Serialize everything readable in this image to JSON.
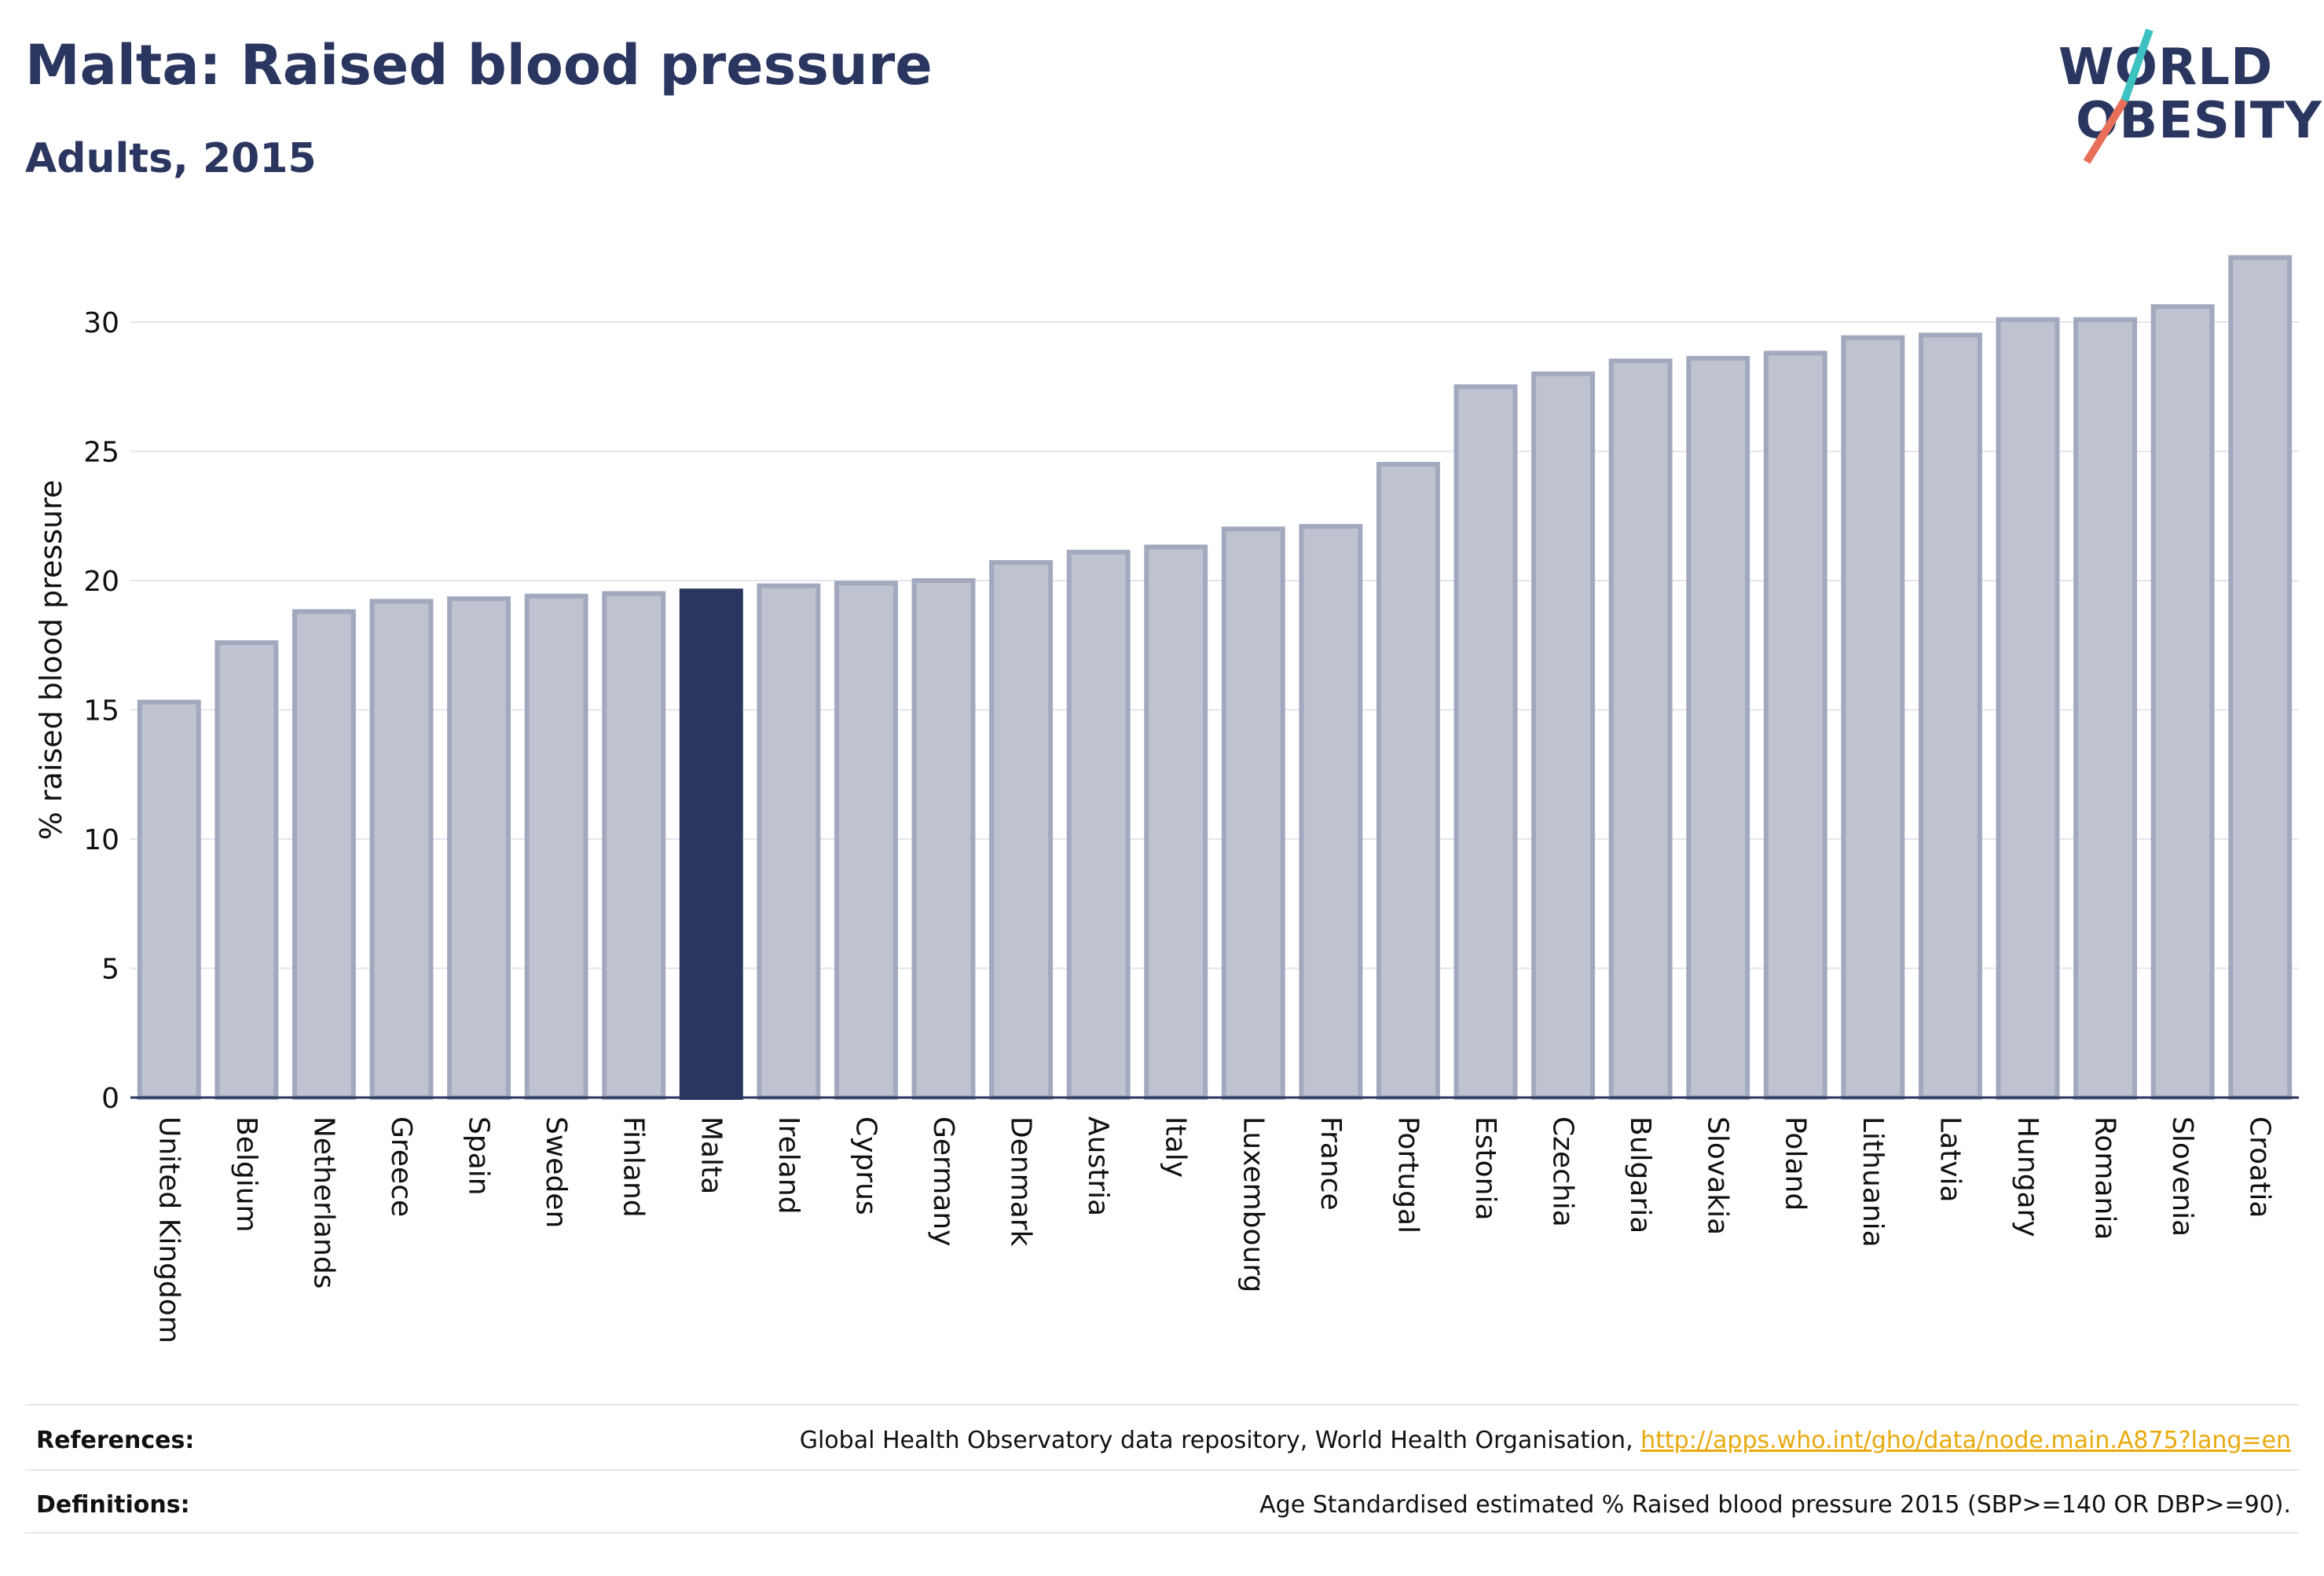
{
  "header": {
    "title": "Malta: Raised blood pressure",
    "subtitle": "Adults, 2015"
  },
  "logo": {
    "line1": "WORLD",
    "line2": "OBESITY",
    "slash_colors": [
      "#3ec1c1",
      "#e8705a"
    ]
  },
  "chart_data": {
    "type": "bar",
    "ylabel": "% raised blood pressure",
    "ylim": [
      0,
      33
    ],
    "yticks": [
      0,
      5,
      10,
      15,
      20,
      25,
      30
    ],
    "grid": true,
    "highlight": "Malta",
    "colors": {
      "bar": "#bfc3d0",
      "bar_border": "#a2a9be",
      "highlight": "#2b3660"
    },
    "categories": [
      "United Kingdom",
      "Belgium",
      "Netherlands",
      "Greece",
      "Spain",
      "Sweden",
      "Finland",
      "Malta",
      "Ireland",
      "Cyprus",
      "Germany",
      "Denmark",
      "Austria",
      "Italy",
      "Luxembourg",
      "France",
      "Portugal",
      "Estonia",
      "Czechia",
      "Bulgaria",
      "Slovakia",
      "Poland",
      "Lithuania",
      "Latvia",
      "Hungary",
      "Romania",
      "Slovenia",
      "Croatia"
    ],
    "values": [
      15.3,
      17.6,
      18.8,
      19.2,
      19.3,
      19.4,
      19.5,
      19.6,
      19.8,
      19.9,
      20.0,
      20.7,
      21.1,
      21.3,
      22.0,
      22.1,
      24.5,
      27.5,
      28.0,
      28.5,
      28.6,
      28.8,
      29.4,
      29.5,
      30.1,
      30.1,
      30.6,
      32.5
    ]
  },
  "footer": {
    "references_label": "References:",
    "references_text": "Global Health Observatory data repository, World Health Organisation, ",
    "references_link": "http://apps.who.int/gho/data/node.main.A875?lang=en",
    "definitions_label": "Definitions:",
    "definitions_text": "Age Standardised estimated % Raised blood pressure 2015 (SBP>=140 OR DBP>=90)."
  }
}
